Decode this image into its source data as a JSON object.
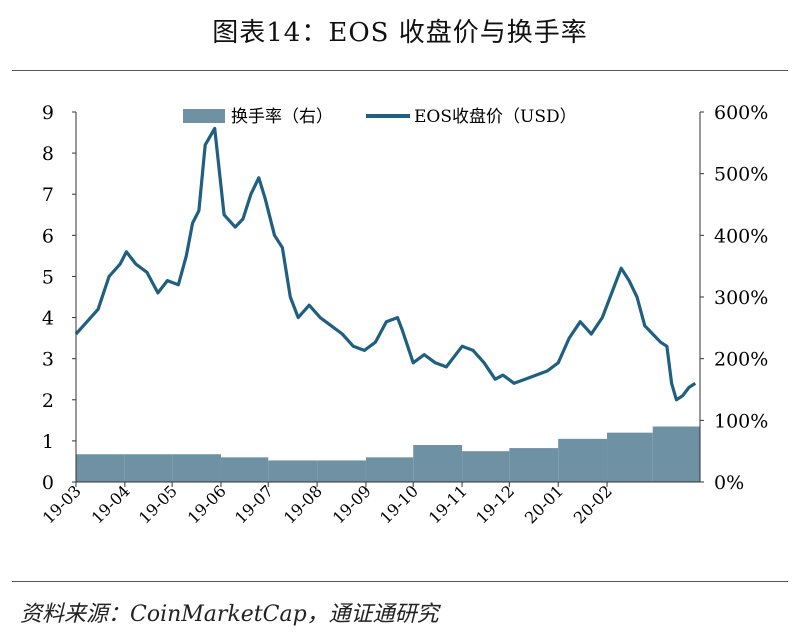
{
  "title": "图表14：EOS 收盘价与换手率",
  "source": "资料来源：CoinMarketCap，通证通研究",
  "colors": {
    "line": "#1f5f82",
    "bar": "#6e92a3"
  },
  "chart_data": {
    "type": "line+bar",
    "x_tick_labels": [
      "19-03",
      "19-04",
      "19-05",
      "19-06",
      "19-07",
      "19-08",
      "19-09",
      "19-10",
      "19-11",
      "19-12",
      "20-01",
      "20-02"
    ],
    "left_axis": {
      "ylim": [
        0,
        9
      ],
      "ticks": [
        "0",
        "1",
        "2",
        "3",
        "4",
        "5",
        "6",
        "7",
        "8",
        "9"
      ]
    },
    "right_axis": {
      "ylim": [
        0,
        600
      ],
      "ticks": [
        "0%",
        "100%",
        "200%",
        "300%",
        "400%",
        "500%",
        "600%"
      ]
    },
    "legend": {
      "placement": "top",
      "bar_label": "换手率（右）",
      "line_label": "EOS收盘价（USD）"
    },
    "series": [
      {
        "name": "EOS收盘价（USD）",
        "axis": "left",
        "type": "line",
        "x": [
          "2019-03-01",
          "2019-03-08",
          "2019-03-15",
          "2019-03-22",
          "2019-03-29",
          "2019-04-02",
          "2019-04-08",
          "2019-04-15",
          "2019-04-22",
          "2019-04-28",
          "2019-05-05",
          "2019-05-10",
          "2019-05-14",
          "2019-05-18",
          "2019-05-22",
          "2019-05-28",
          "2019-06-03",
          "2019-06-10",
          "2019-06-15",
          "2019-06-20",
          "2019-06-25",
          "2019-06-29",
          "2019-07-05",
          "2019-07-10",
          "2019-07-15",
          "2019-07-20",
          "2019-07-27",
          "2019-08-03",
          "2019-08-10",
          "2019-08-17",
          "2019-08-24",
          "2019-08-31",
          "2019-09-07",
          "2019-09-14",
          "2019-09-21",
          "2019-09-24",
          "2019-10-01",
          "2019-10-08",
          "2019-10-15",
          "2019-10-22",
          "2019-10-26",
          "2019-11-01",
          "2019-11-08",
          "2019-11-15",
          "2019-11-22",
          "2019-11-27",
          "2019-12-04",
          "2019-12-11",
          "2019-12-18",
          "2019-12-25",
          "2020-01-01",
          "2020-01-08",
          "2020-01-15",
          "2020-01-22",
          "2020-01-29",
          "2020-02-05",
          "2020-02-10",
          "2020-02-15",
          "2020-02-20",
          "2020-02-25",
          "2020-03-01",
          "2020-03-06",
          "2020-03-10",
          "2020-03-13",
          "2020-03-16",
          "2020-03-20",
          "2020-03-24",
          "2020-03-28"
        ],
        "y": [
          3.6,
          3.9,
          4.2,
          5.0,
          5.3,
          5.6,
          5.3,
          5.1,
          4.6,
          4.9,
          4.8,
          5.5,
          6.3,
          6.6,
          8.2,
          8.6,
          6.5,
          6.2,
          6.4,
          7.0,
          7.4,
          6.9,
          6.0,
          5.7,
          4.5,
          4.0,
          4.3,
          4.0,
          3.8,
          3.6,
          3.3,
          3.2,
          3.4,
          3.9,
          4.0,
          3.7,
          2.9,
          3.1,
          2.9,
          2.8,
          3.0,
          3.3,
          3.2,
          2.9,
          2.5,
          2.6,
          2.4,
          2.5,
          2.6,
          2.7,
          2.9,
          3.5,
          3.9,
          3.6,
          4.0,
          4.7,
          5.2,
          4.9,
          4.5,
          3.8,
          3.6,
          3.4,
          3.3,
          2.4,
          2.0,
          2.1,
          2.3,
          2.4
        ]
      },
      {
        "name": "换手率（右）",
        "axis": "right",
        "type": "bar",
        "x": [
          "2019-03",
          "2019-04",
          "2019-05",
          "2019-06",
          "2019-07",
          "2019-08",
          "2019-09",
          "2019-10",
          "2019-11",
          "2019-12",
          "2020-01",
          "2020-02",
          "2020-03"
        ],
        "y": [
          45,
          45,
          45,
          40,
          35,
          35,
          40,
          60,
          50,
          55,
          70,
          80,
          90
        ]
      }
    ]
  }
}
